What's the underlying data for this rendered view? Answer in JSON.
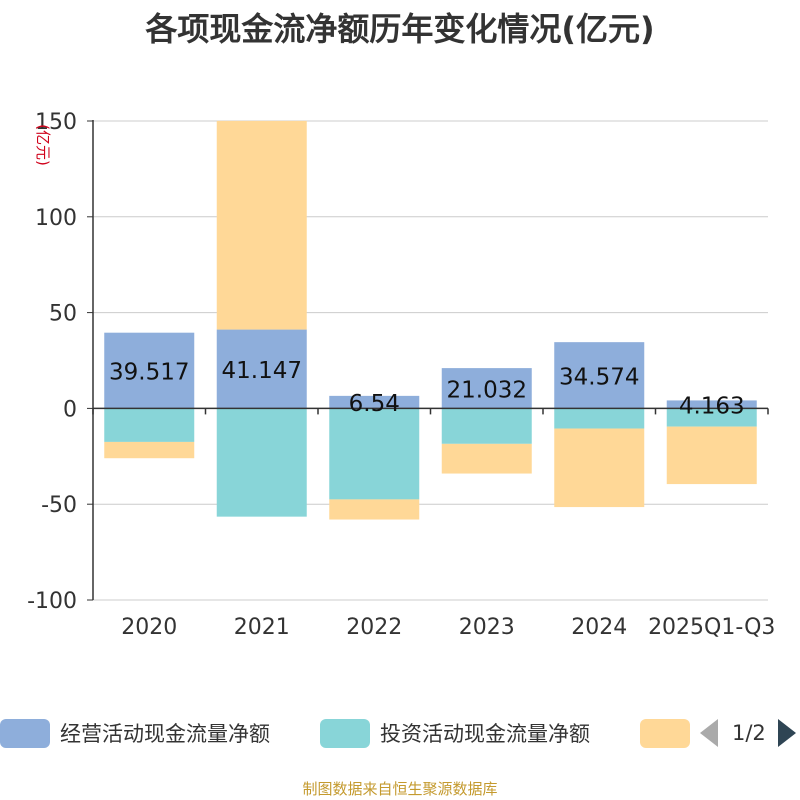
{
  "title": "各项现金流净额历年变化情况(亿元)",
  "footer": "制图数据来自恒生聚源数据库",
  "legend": {
    "page_indicator": "1/2"
  },
  "chart_data": {
    "type": "bar",
    "stacked": true,
    "title": "各项现金流净额历年变化情况(亿元)",
    "ylabel": "(亿元)",
    "ylim": [
      -100,
      150
    ],
    "yticks": [
      150,
      100,
      50,
      0,
      -50,
      -100
    ],
    "categories": [
      "2020",
      "2021",
      "2022",
      "2023",
      "2024",
      "2025Q1-Q3"
    ],
    "series": [
      {
        "name": "经营活动现金流量净额",
        "color": "#8eaedb",
        "values": [
          39.517,
          41.147,
          6.54,
          21.032,
          34.574,
          4.163
        ],
        "show_labels": true
      },
      {
        "name": "投资活动现金流量净额",
        "color": "#88d5d8",
        "values": [
          -17.5,
          -56.5,
          -47.5,
          -18.5,
          -10.5,
          -9.5
        ],
        "show_labels": false
      },
      {
        "name": "",
        "color": "#ffd897",
        "values": [
          -8.5,
          108.9,
          -10.5,
          -15.5,
          -41,
          -30
        ],
        "show_labels": false
      }
    ]
  }
}
